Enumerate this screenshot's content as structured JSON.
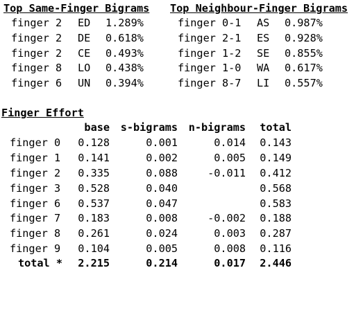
{
  "same_finger": {
    "title": "Top Same-Finger Bigrams",
    "rows": [
      {
        "finger": "finger 2",
        "bigram": "ED",
        "pct": "1.289%"
      },
      {
        "finger": "finger 2",
        "bigram": "DE",
        "pct": "0.618%"
      },
      {
        "finger": "finger 2",
        "bigram": "CE",
        "pct": "0.493%"
      },
      {
        "finger": "finger 8",
        "bigram": "LO",
        "pct": "0.438%"
      },
      {
        "finger": "finger 6",
        "bigram": "UN",
        "pct": "0.394%"
      }
    ]
  },
  "neighbour_finger": {
    "title": "Top Neighbour-Finger Bigrams",
    "rows": [
      {
        "finger": "finger 0-1",
        "bigram": "AS",
        "pct": "0.987%"
      },
      {
        "finger": "finger 2-1",
        "bigram": "ES",
        "pct": "0.928%"
      },
      {
        "finger": "finger 1-2",
        "bigram": "SE",
        "pct": "0.855%"
      },
      {
        "finger": "finger 1-0",
        "bigram": "WA",
        "pct": "0.617%"
      },
      {
        "finger": "finger 8-7",
        "bigram": "LI",
        "pct": "0.557%"
      }
    ]
  },
  "effort": {
    "title": "Finger Effort",
    "columns": {
      "base": "base",
      "s_bigrams": "s-bigrams",
      "n_bigrams": "n-bigrams",
      "total": "total"
    },
    "rows": [
      {
        "finger": "finger 0",
        "base": "0.128",
        "s": "0.001",
        "n": "0.014",
        "total": "0.143"
      },
      {
        "finger": "finger 1",
        "base": "0.141",
        "s": "0.002",
        "n": "0.005",
        "total": "0.149"
      },
      {
        "finger": "finger 2",
        "base": "0.335",
        "s": "0.088",
        "n": "-0.011",
        "total": "0.412"
      },
      {
        "finger": "finger 3",
        "base": "0.528",
        "s": "0.040",
        "n": "",
        "total": "0.568"
      },
      {
        "finger": "finger 6",
        "base": "0.537",
        "s": "0.047",
        "n": "",
        "total": "0.583"
      },
      {
        "finger": "finger 7",
        "base": "0.183",
        "s": "0.008",
        "n": "-0.002",
        "total": "0.188"
      },
      {
        "finger": "finger 8",
        "base": "0.261",
        "s": "0.024",
        "n": "0.003",
        "total": "0.287"
      },
      {
        "finger": "finger 9",
        "base": "0.104",
        "s": "0.005",
        "n": "0.008",
        "total": "0.116"
      }
    ],
    "total_row": {
      "label": "total *",
      "base": "2.215",
      "s": "0.214",
      "n": "0.017",
      "total": "2.446"
    }
  }
}
